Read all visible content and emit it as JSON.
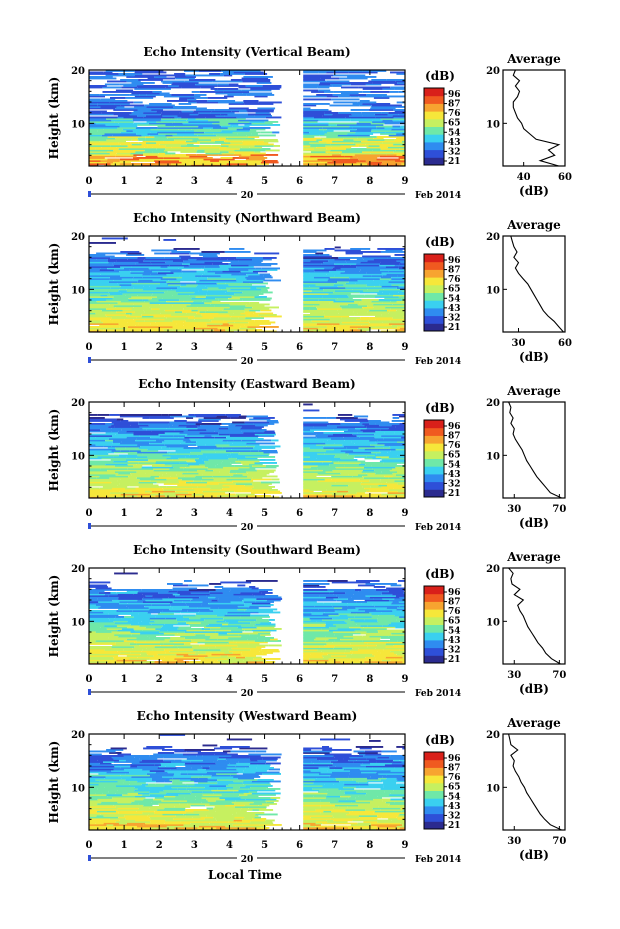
{
  "figure": {
    "date_label": "Feb 2014",
    "day_label": "20",
    "xlabel": "Local Time",
    "ylabel": "Height (km)",
    "unit_label": "(dB)",
    "avg_title": "Average",
    "avg_xlabel": "(dB)"
  },
  "colorscale": {
    "ticks": [
      "96",
      "87",
      "76",
      "65",
      "54",
      "43",
      "32",
      "21"
    ],
    "colors": [
      "#2b2b8f",
      "#2e4fd8",
      "#2f8cf0",
      "#3ad0f0",
      "#6fe8a8",
      "#c6f060",
      "#f6e73a",
      "#f7a430",
      "#f05a20",
      "#d9201a"
    ]
  },
  "chart_data": [
    {
      "type": "heatmap",
      "title": "Echo Intensity (Vertical Beam)",
      "xlabel": "Local Time",
      "ylabel": "Height (km)",
      "xlim": [
        0,
        9
      ],
      "ylim": [
        2,
        20
      ],
      "x_ticks": [
        "0",
        "1",
        "2",
        "3",
        "4",
        "5",
        "6",
        "7",
        "8",
        "9"
      ],
      "y_ticks": [
        "20",
        "10"
      ],
      "data_gap_hours": [
        5.5,
        6.1
      ],
      "colorbar": {
        "label": "(dB)",
        "ticks": [
          "96",
          "87",
          "76",
          "65",
          "54",
          "43",
          "32",
          "21"
        ]
      },
      "average_profile": {
        "title": "Average",
        "xlabel": "(dB)",
        "xlim": [
          30,
          60
        ],
        "x_ticks": [
          "40",
          "60"
        ],
        "y_ticks": [
          "20",
          "10"
        ],
        "height_km": [
          2,
          3,
          4,
          5,
          6,
          7,
          8,
          9,
          10,
          11,
          12,
          13,
          14,
          15,
          16,
          17,
          18,
          19,
          20
        ],
        "db": [
          57,
          48,
          55,
          52,
          57,
          46,
          43,
          40,
          39,
          37,
          36,
          35,
          35,
          37,
          38,
          36,
          38,
          35,
          36
        ]
      }
    },
    {
      "type": "heatmap",
      "title": "Echo Intensity (Northward Beam)",
      "xlabel": "Local Time",
      "ylabel": "Height (km)",
      "xlim": [
        0,
        9
      ],
      "ylim": [
        2,
        20
      ],
      "x_ticks": [
        "0",
        "1",
        "2",
        "3",
        "4",
        "5",
        "6",
        "7",
        "8",
        "9"
      ],
      "y_ticks": [
        "20",
        "10"
      ],
      "data_gap_hours": [
        5.5,
        6.1
      ],
      "colorbar": {
        "label": "(dB)",
        "ticks": [
          "96",
          "87",
          "76",
          "65",
          "54",
          "43",
          "32",
          "21"
        ]
      },
      "average_profile": {
        "title": "Average",
        "xlabel": "(dB)",
        "xlim": [
          20,
          60
        ],
        "x_ticks": [
          "30",
          "60"
        ],
        "y_ticks": [
          "20",
          "10"
        ],
        "height_km": [
          2,
          3,
          4,
          5,
          6,
          7,
          8,
          9,
          10,
          11,
          12,
          13,
          14,
          15,
          16,
          17,
          18,
          19,
          20
        ],
        "db": [
          59,
          56,
          53,
          49,
          46,
          44,
          42,
          40,
          38,
          36,
          33,
          30,
          28,
          30,
          27,
          29,
          27,
          26,
          25
        ]
      }
    },
    {
      "type": "heatmap",
      "title": "Echo Intensity (Eastward Beam)",
      "xlabel": "Local Time",
      "ylabel": "Height (km)",
      "xlim": [
        0,
        9
      ],
      "ylim": [
        2,
        20
      ],
      "x_ticks": [
        "0",
        "1",
        "2",
        "3",
        "4",
        "5",
        "6",
        "7",
        "8",
        "9"
      ],
      "y_ticks": [
        "20",
        "10"
      ],
      "data_gap_hours": [
        5.5,
        6.1
      ],
      "colorbar": {
        "label": "(dB)",
        "ticks": [
          "96",
          "87",
          "76",
          "65",
          "54",
          "43",
          "32",
          "21"
        ]
      },
      "average_profile": {
        "title": "Average",
        "xlabel": "(dB)",
        "xlim": [
          20,
          75
        ],
        "x_ticks": [
          "30",
          "70"
        ],
        "y_ticks": [
          "20",
          "10"
        ],
        "height_km": [
          2,
          3,
          4,
          5,
          6,
          7,
          8,
          9,
          10,
          11,
          12,
          13,
          14,
          15,
          16,
          17,
          18,
          19,
          20
        ],
        "db": [
          72,
          62,
          58,
          54,
          50,
          47,
          44,
          41,
          39,
          37,
          34,
          31,
          29,
          30,
          27,
          29,
          26,
          27,
          25
        ]
      }
    },
    {
      "type": "heatmap",
      "title": "Echo Intensity (Southward Beam)",
      "xlabel": "Local Time",
      "ylabel": "Height (km)",
      "xlim": [
        0,
        9
      ],
      "ylim": [
        2,
        20
      ],
      "x_ticks": [
        "0",
        "1",
        "2",
        "3",
        "4",
        "5",
        "6",
        "7",
        "8",
        "9"
      ],
      "y_ticks": [
        "20",
        "10"
      ],
      "data_gap_hours": [
        5.5,
        6.1
      ],
      "colorbar": {
        "label": "(dB)",
        "ticks": [
          "96",
          "87",
          "76",
          "65",
          "54",
          "43",
          "32",
          "21"
        ]
      },
      "average_profile": {
        "title": "Average",
        "xlabel": "(dB)",
        "xlim": [
          20,
          75
        ],
        "x_ticks": [
          "30",
          "70"
        ],
        "y_ticks": [
          "20",
          "10"
        ],
        "height_km": [
          2,
          3,
          4,
          5,
          6,
          7,
          8,
          9,
          10,
          11,
          12,
          13,
          14,
          15,
          16,
          17,
          18,
          19,
          20
        ],
        "db": [
          71,
          63,
          58,
          55,
          51,
          48,
          45,
          42,
          40,
          38,
          35,
          33,
          38,
          30,
          35,
          28,
          27,
          29,
          25
        ]
      }
    },
    {
      "type": "heatmap",
      "title": "Echo Intensity (Westward Beam)",
      "xlabel": "Local Time",
      "ylabel": "Height (km)",
      "xlim": [
        0,
        9
      ],
      "ylim": [
        2,
        20
      ],
      "x_ticks": [
        "0",
        "1",
        "2",
        "3",
        "4",
        "5",
        "6",
        "7",
        "8",
        "9"
      ],
      "y_ticks": [
        "20",
        "10"
      ],
      "data_gap_hours": [
        5.5,
        6.1
      ],
      "colorbar": {
        "label": "(dB)",
        "ticks": [
          "96",
          "87",
          "76",
          "65",
          "54",
          "43",
          "32",
          "21"
        ]
      },
      "average_profile": {
        "title": "Average",
        "xlabel": "(dB)",
        "xlim": [
          20,
          75
        ],
        "x_ticks": [
          "30",
          "70"
        ],
        "y_ticks": [
          "20",
          "10"
        ],
        "height_km": [
          2,
          3,
          4,
          5,
          6,
          7,
          8,
          9,
          10,
          11,
          12,
          13,
          14,
          15,
          16,
          17,
          18,
          19,
          20
        ],
        "db": [
          72,
          62,
          57,
          53,
          50,
          47,
          44,
          41,
          39,
          36,
          34,
          31,
          29,
          30,
          27,
          33,
          27,
          26,
          25
        ]
      }
    }
  ]
}
